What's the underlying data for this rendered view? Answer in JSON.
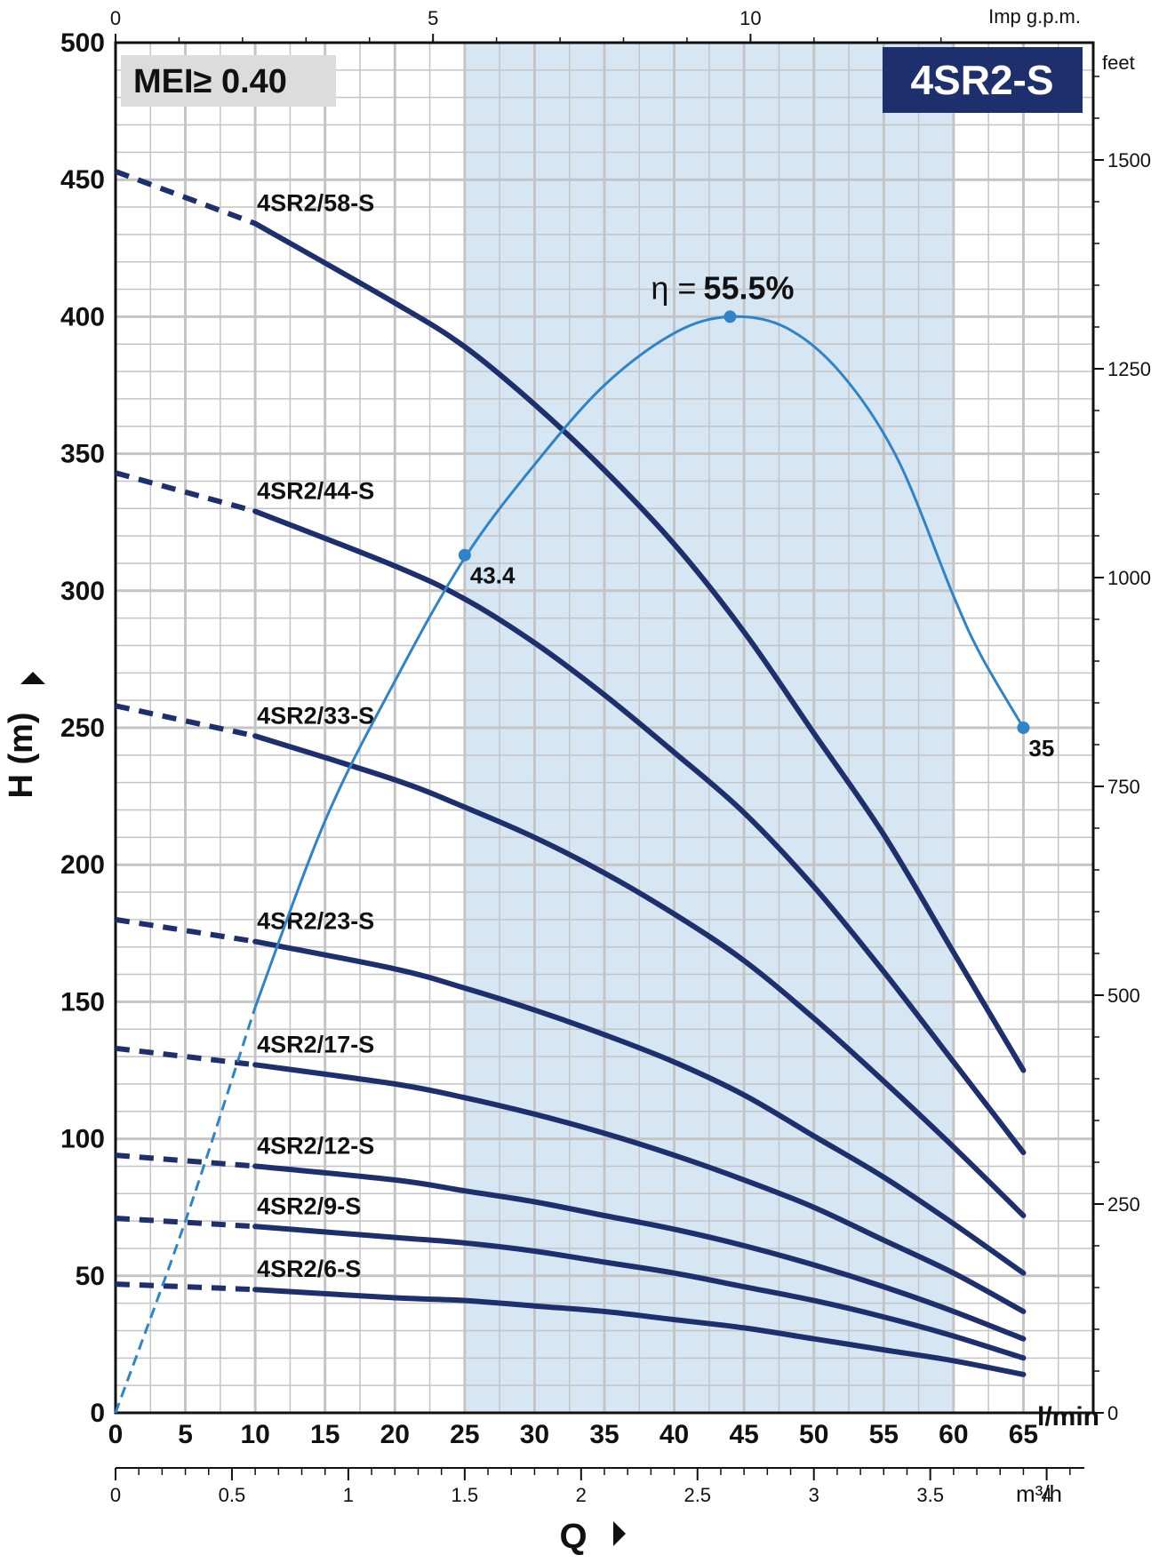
{
  "chart_data": {
    "type": "line",
    "title": "4SR2-S",
    "badge": "MEI≥ 0.40",
    "xlabel": "Q",
    "ylabel": "H (m)",
    "x_unit_primary": "l/min",
    "x_unit_secondary": "m³/h",
    "x_unit_top": "Imp g.p.m.",
    "y_unit_right": "feet",
    "xlim": [
      0,
      70
    ],
    "ylim": [
      0,
      500
    ],
    "grid": true,
    "x_ticks": [
      0,
      5,
      10,
      15,
      20,
      25,
      30,
      35,
      40,
      45,
      50,
      55,
      60,
      65
    ],
    "y_ticks": [
      0,
      50,
      100,
      150,
      200,
      250,
      300,
      350,
      400,
      450,
      500
    ],
    "top_ticks": [
      0,
      5,
      10
    ],
    "right_ticks": [
      0,
      250,
      500,
      750,
      1000,
      1250,
      1500
    ],
    "m3h_ticks": [
      "0",
      "0.5",
      "1",
      "1.5",
      "2",
      "2.5",
      "3",
      "3.5",
      "4"
    ],
    "highlight_range": [
      25,
      60
    ],
    "series": [
      {
        "name": "4SR2/58-S",
        "x": [
          0,
          10,
          20,
          25,
          30,
          35,
          40,
          45,
          50,
          55,
          60,
          65
        ],
        "values": [
          453,
          434,
          405,
          389,
          368,
          344,
          317,
          285,
          248,
          211,
          168,
          125
        ],
        "dashed_to": 10
      },
      {
        "name": "4SR2/44-S",
        "x": [
          0,
          10,
          20,
          25,
          30,
          35,
          40,
          45,
          50,
          55,
          60,
          65
        ],
        "values": [
          343,
          329,
          309,
          297,
          281,
          262,
          241,
          219,
          192,
          161,
          128,
          95
        ],
        "dashed_to": 10
      },
      {
        "name": "4SR2/33-S",
        "x": [
          0,
          10,
          20,
          25,
          30,
          35,
          40,
          45,
          50,
          55,
          60,
          65
        ],
        "values": [
          258,
          247,
          231,
          221,
          210,
          197,
          182,
          165,
          144,
          121,
          97,
          72
        ],
        "dashed_to": 10
      },
      {
        "name": "4SR2/23-S",
        "x": [
          0,
          10,
          20,
          25,
          30,
          35,
          40,
          45,
          50,
          55,
          60,
          65
        ],
        "values": [
          180,
          172,
          162,
          155,
          147,
          138,
          128,
          116,
          101,
          86,
          69,
          51
        ],
        "dashed_to": 10
      },
      {
        "name": "4SR2/17-S",
        "x": [
          0,
          10,
          20,
          25,
          30,
          35,
          40,
          45,
          50,
          55,
          60,
          65
        ],
        "values": [
          133,
          127,
          120,
          115,
          109,
          102,
          94,
          85,
          75,
          63,
          51,
          37
        ],
        "dashed_to": 10
      },
      {
        "name": "4SR2/12-S",
        "x": [
          0,
          10,
          20,
          25,
          30,
          35,
          40,
          45,
          50,
          55,
          60,
          65
        ],
        "values": [
          94,
          90,
          85,
          81,
          77,
          72,
          67,
          61,
          54,
          46,
          37,
          27
        ],
        "dashed_to": 10
      },
      {
        "name": "4SR2/9-S",
        "x": [
          0,
          10,
          20,
          25,
          30,
          35,
          40,
          45,
          50,
          55,
          60,
          65
        ],
        "values": [
          71,
          68,
          64,
          62,
          59,
          55,
          51,
          46,
          41,
          35,
          28,
          20
        ],
        "dashed_to": 10
      },
      {
        "name": "4SR2/6-S",
        "x": [
          0,
          10,
          20,
          25,
          30,
          35,
          40,
          45,
          50,
          55,
          60,
          65
        ],
        "values": [
          47,
          45,
          42,
          41,
          39,
          37,
          34,
          31,
          27,
          23,
          19,
          14
        ],
        "dashed_to": 10
      }
    ],
    "efficiency": {
      "label_prefix": "η =",
      "label_value": "55.5%",
      "x": [
        0,
        5,
        10,
        15,
        20,
        25,
        30,
        35,
        40,
        44,
        48,
        52,
        56,
        60,
        62,
        65
      ],
      "y": [
        0,
        70,
        148,
        216,
        267,
        312,
        346,
        375,
        394,
        400,
        396,
        379,
        348,
        298,
        276,
        250
      ],
      "dashed_to": 10,
      "points": [
        {
          "x": 25,
          "y": 313,
          "label": "43.4"
        },
        {
          "x": 44,
          "y": 400,
          "label": ""
        },
        {
          "x": 65,
          "y": 250,
          "label": "35"
        }
      ]
    },
    "colors": {
      "curve": "#1e2f6e",
      "efficiency": "#2f84c8",
      "highlight": "#d6e6f3",
      "grid": "#c4c4c4",
      "title_bg": "#1e2f6e",
      "badge_bg": "#dcdcdc"
    }
  }
}
